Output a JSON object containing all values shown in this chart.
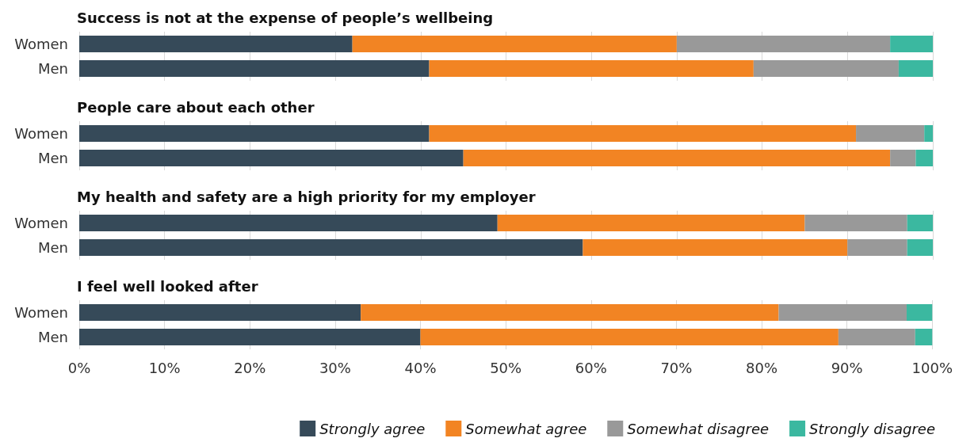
{
  "chart_data": [
    {
      "type": "bar",
      "orientation": "horizontal",
      "stacked": true,
      "title": "Success is not at the expense of people’s wellbeing",
      "categories": [
        "Women",
        "Men"
      ],
      "series": [
        {
          "color": "#364a59",
          "values": [
            32,
            41
          ]
        },
        {
          "color": "#f28423",
          "values": [
            38,
            38
          ]
        },
        {
          "color": "#999999",
          "values": [
            25,
            17
          ]
        },
        {
          "color": "#3bb8a0",
          "values": [
            5,
            4
          ]
        }
      ],
      "xlim": [
        0,
        100
      ],
      "xticks": [
        {
          "value": 0,
          "label": null
        },
        {
          "value": 10,
          "label": null
        },
        {
          "value": 20,
          "label": null
        },
        {
          "value": 30,
          "label": null
        },
        {
          "value": 40,
          "label": null
        },
        {
          "value": 50,
          "label": null
        },
        {
          "value": 60,
          "label": null
        },
        {
          "value": 70,
          "label": null
        },
        {
          "value": 80,
          "label": null
        },
        {
          "value": 90,
          "label": null
        },
        {
          "value": 100,
          "label": null
        }
      ],
      "grid": "x",
      "tick_labels": "y"
    },
    {
      "type": "bar",
      "orientation": "horizontal",
      "stacked": true,
      "title": "People care about each other",
      "categories": [
        "Women",
        "Men"
      ],
      "series": [
        {
          "color": "#364a59",
          "values": [
            41,
            45
          ]
        },
        {
          "color": "#f28423",
          "values": [
            50,
            50
          ]
        },
        {
          "color": "#999999",
          "values": [
            8,
            3
          ]
        },
        {
          "color": "#3bb8a0",
          "values": [
            1,
            2
          ]
        }
      ],
      "xlim": [
        0,
        100
      ],
      "xticks": [
        {
          "value": 0,
          "label": null
        },
        {
          "value": 10,
          "label": null
        },
        {
          "value": 20,
          "label": null
        },
        {
          "value": 30,
          "label": null
        },
        {
          "value": 40,
          "label": null
        },
        {
          "value": 50,
          "label": null
        },
        {
          "value": 60,
          "label": null
        },
        {
          "value": 70,
          "label": null
        },
        {
          "value": 80,
          "label": null
        },
        {
          "value": 90,
          "label": null
        },
        {
          "value": 100,
          "label": null
        }
      ],
      "grid": "x",
      "tick_labels": "y"
    },
    {
      "type": "bar",
      "orientation": "horizontal",
      "stacked": true,
      "title": "My health and safety are a high priority for my employer",
      "categories": [
        "Women",
        "Men"
      ],
      "series": [
        {
          "color": "#364a59",
          "values": [
            49,
            59
          ]
        },
        {
          "color": "#f28423",
          "values": [
            36,
            31
          ]
        },
        {
          "color": "#999999",
          "values": [
            12,
            7
          ]
        },
        {
          "color": "#3bb8a0",
          "values": [
            3,
            3
          ]
        }
      ],
      "xlim": [
        0,
        100
      ],
      "xticks": [
        {
          "value": 0,
          "label": null
        },
        {
          "value": 10,
          "label": null
        },
        {
          "value": 20,
          "label": null
        },
        {
          "value": 30,
          "label": null
        },
        {
          "value": 40,
          "label": null
        },
        {
          "value": 50,
          "label": null
        },
        {
          "value": 60,
          "label": null
        },
        {
          "value": 70,
          "label": null
        },
        {
          "value": 80,
          "label": null
        },
        {
          "value": 90,
          "label": null
        },
        {
          "value": 100,
          "label": null
        }
      ],
      "grid": "x",
      "tick_labels": "y"
    },
    {
      "type": "bar",
      "orientation": "horizontal",
      "stacked": true,
      "title": "I feel well looked after",
      "categories": [
        "Women",
        "Men"
      ],
      "series": [
        {
          "name": "Strongly agree",
          "color": "#364a59",
          "values": [
            33,
            40
          ]
        },
        {
          "name": "Somewhat agree",
          "color": "#f28423",
          "values": [
            49,
            49
          ]
        },
        {
          "name": "Somewhat disagree",
          "color": "#999999",
          "values": [
            15,
            9
          ]
        },
        {
          "name": "Strongly disagree",
          "color": "#3bb8a0",
          "values": [
            3,
            2
          ]
        }
      ],
      "xlim": [
        0,
        100
      ],
      "xticks": [
        {
          "value": 0,
          "label": "0%"
        },
        {
          "value": 10,
          "label": "10%"
        },
        {
          "value": 20,
          "label": "20%"
        },
        {
          "value": 30,
          "label": "30%"
        },
        {
          "value": 40,
          "label": "40%"
        },
        {
          "value": 50,
          "label": "50%"
        },
        {
          "value": 60,
          "label": "60%"
        },
        {
          "value": 70,
          "label": "70%"
        },
        {
          "value": 80,
          "label": "80%"
        },
        {
          "value": 90,
          "label": "90%"
        },
        {
          "value": 100,
          "label": "100%"
        }
      ],
      "grid": "x",
      "legend": "bottom right"
    }
  ]
}
